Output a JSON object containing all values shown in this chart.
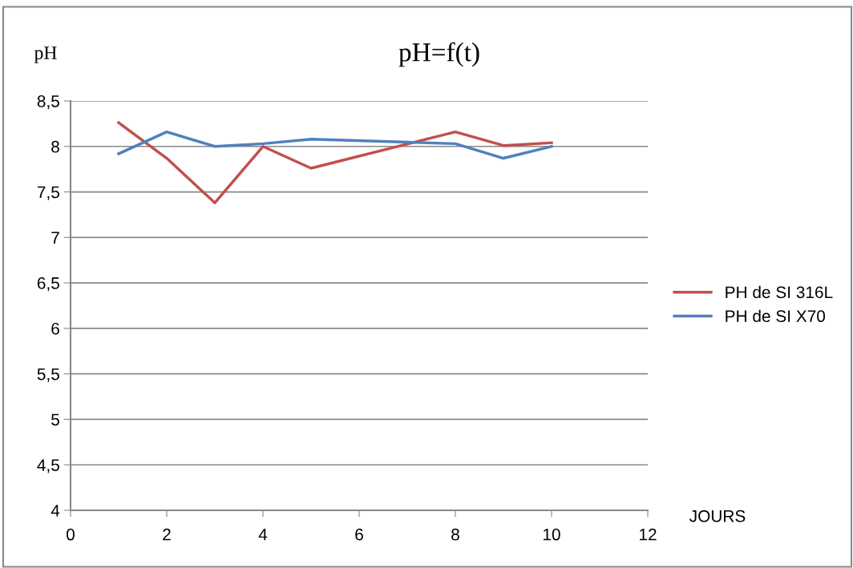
{
  "chart_data": {
    "type": "line",
    "title": "pH=f(t)",
    "ylabel": "pH",
    "xlabel": "JOURS",
    "series": [
      {
        "name": "PH de SI 316L",
        "color": "#c0504d",
        "x": [
          1,
          2,
          3,
          4,
          5,
          8,
          9,
          10
        ],
        "values": [
          8.26,
          7.87,
          7.38,
          8.0,
          7.76,
          8.16,
          8.01,
          8.04
        ]
      },
      {
        "name": "PH de SI X70",
        "color": "#4f81bd",
        "x": [
          1,
          2,
          3,
          4,
          5,
          8,
          9,
          10
        ],
        "values": [
          7.92,
          8.16,
          8.0,
          8.03,
          8.08,
          8.03,
          7.87,
          8.0
        ]
      }
    ],
    "xlim": [
      0,
      12
    ],
    "xticks": [
      0,
      2,
      4,
      6,
      8,
      10,
      12
    ],
    "ylim": [
      4,
      8.5
    ],
    "yticks": [
      4,
      {
        "value": 4.5,
        "label": "4,5"
      },
      5,
      {
        "value": 5.5,
        "label": "5,5"
      },
      6,
      {
        "value": 6.5,
        "label": "6,5"
      },
      7,
      {
        "value": 7.5,
        "label": "7,5"
      },
      8,
      {
        "value": 8.5,
        "label": "8,5"
      }
    ],
    "grid": "y",
    "legend": "right",
    "marker": "none",
    "line_style": "solid"
  }
}
